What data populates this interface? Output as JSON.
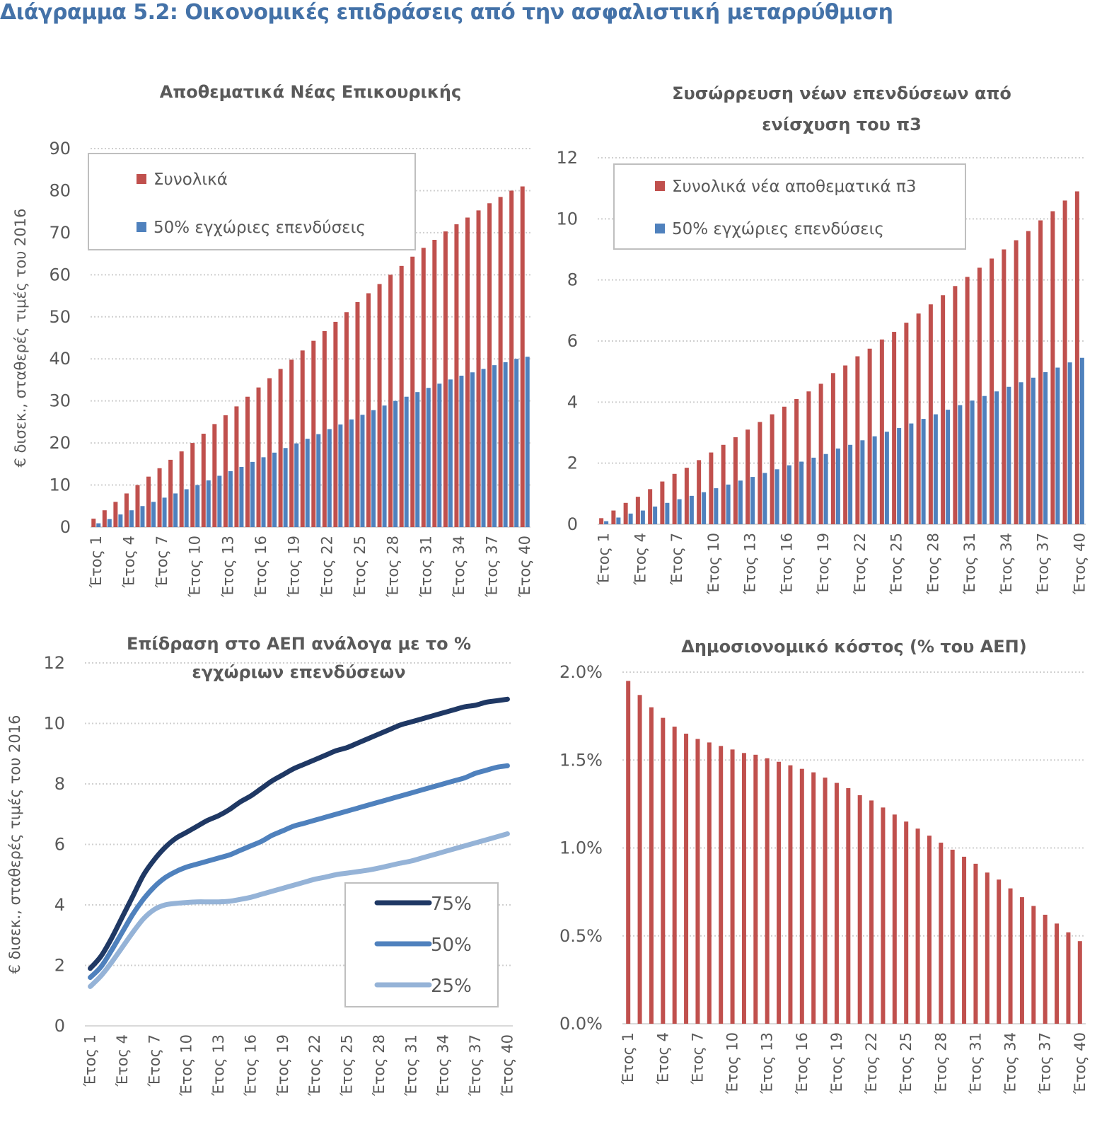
{
  "page": {
    "title": "Διάγραμμα 5.2: Οικονομικές επιδράσεις από την ασφαλιστική μεταρρύθμιση"
  },
  "chart_data": [
    {
      "id": "reserves",
      "type": "bar",
      "title": [
        "Αποθεματικά Νέας Επικουρικής"
      ],
      "xlabel": "",
      "ylabel": "€ δισεκ., σταθερές τιμές του 2016",
      "ylim": [
        0,
        90
      ],
      "yticks": [
        0,
        10,
        20,
        30,
        40,
        50,
        60,
        70,
        80,
        90
      ],
      "ytick_labels": [
        "0",
        "10",
        "20",
        "30",
        "40",
        "50",
        "60",
        "70",
        "80",
        "90"
      ],
      "grid": true,
      "legend": "top-left",
      "categories": [
        "Έτος 1",
        "Έτος 2",
        "Έτος 3",
        "Έτος 4",
        "Έτος 5",
        "Έτος 6",
        "Έτος 7",
        "Έτος 8",
        "Έτος 9",
        "Έτος 10",
        "Έτος 11",
        "Έτος 12",
        "Έτος 13",
        "Έτος 14",
        "Έτος 15",
        "Έτος 16",
        "Έτος 17",
        "Έτος 18",
        "Έτος 19",
        "Έτος 20",
        "Έτος 21",
        "Έτος 22",
        "Έτος 23",
        "Έτος 24",
        "Έτος 25",
        "Έτος 26",
        "Έτος 27",
        "Έτος 28",
        "Έτος 29",
        "Έτος 30",
        "Έτος 31",
        "Έτος 32",
        "Έτος 33",
        "Έτος 34",
        "Έτος 35",
        "Έτος 36",
        "Έτος 37",
        "Έτος 38",
        "Έτος 39",
        "Έτος 40"
      ],
      "tick_every": 3,
      "series": [
        {
          "name": "Συνολικά",
          "color": "#c0504d",
          "values": [
            2,
            4,
            6,
            8,
            10,
            12,
            14,
            16,
            18,
            20,
            22.2,
            24.5,
            26.6,
            28.7,
            31,
            33.2,
            35.4,
            37.6,
            39.8,
            42,
            44.3,
            46.6,
            48.8,
            51.1,
            53.5,
            55.6,
            57.8,
            60,
            62.1,
            64.3,
            66.4,
            68.3,
            70.3,
            72,
            73.6,
            75.3,
            77,
            78.5,
            80,
            81
          ]
        },
        {
          "name": "50% εγχώριες επενδύσεις",
          "color": "#4f81bd",
          "values": [
            0.9,
            1.9,
            3,
            4,
            5,
            6,
            7,
            8,
            9,
            10,
            11.1,
            12.2,
            13.3,
            14.3,
            15.5,
            16.6,
            17.7,
            18.8,
            19.9,
            21,
            22.1,
            23.3,
            24.4,
            25.6,
            26.7,
            27.8,
            28.9,
            30,
            31,
            32.1,
            33.1,
            34.1,
            35.1,
            36,
            36.8,
            37.6,
            38.5,
            39.2,
            40,
            40.5
          ]
        }
      ]
    },
    {
      "id": "pillar3",
      "type": "bar",
      "title": [
        "Συσώρρευση νέων επενδύσεων από",
        "ενίσχυση του π3"
      ],
      "xlabel": "",
      "ylabel": "",
      "ylim": [
        0,
        12
      ],
      "yticks": [
        0,
        2,
        4,
        6,
        8,
        10,
        12
      ],
      "ytick_labels": [
        "0",
        "2",
        "4",
        "6",
        "8",
        "10",
        "12"
      ],
      "grid": true,
      "legend": "top-left",
      "categories": [
        "Έτος 1",
        "Έτος 2",
        "Έτος 3",
        "Έτος 4",
        "Έτος 5",
        "Έτος 6",
        "Έτος 7",
        "Έτος 8",
        "Έτος 9",
        "Έτος 10",
        "Έτος 11",
        "Έτος 12",
        "Έτος 13",
        "Έτος 14",
        "Έτος 15",
        "Έτος 16",
        "Έτος 17",
        "Έτος 18",
        "Έτος 19",
        "Έτος 20",
        "Έτος 21",
        "Έτος 22",
        "Έτος 23",
        "Έτος 24",
        "Έτος 25",
        "Έτος 26",
        "Έτος 27",
        "Έτος 28",
        "Έτος 29",
        "Έτος 30",
        "Έτος 31",
        "Έτος 32",
        "Έτος 33",
        "Έτος 34",
        "Έτος 35",
        "Έτος 36",
        "Έτος 37",
        "Έτος 38",
        "Έτος 39",
        "Έτος 40"
      ],
      "tick_every": 3,
      "series": [
        {
          "name": "Συνολικά νέα αποθεματικά π3",
          "color": "#c0504d",
          "values": [
            0.2,
            0.45,
            0.7,
            0.9,
            1.15,
            1.4,
            1.65,
            1.85,
            2.1,
            2.35,
            2.6,
            2.85,
            3.1,
            3.35,
            3.6,
            3.85,
            4.1,
            4.35,
            4.6,
            4.95,
            5.2,
            5.5,
            5.75,
            6.05,
            6.3,
            6.6,
            6.9,
            7.2,
            7.5,
            7.8,
            8.1,
            8.4,
            8.7,
            9.0,
            9.3,
            9.6,
            9.95,
            10.25,
            10.6,
            10.9
          ]
        },
        {
          "name": "50% εγχώριες επενδύσεις",
          "color": "#4f81bd",
          "values": [
            0.1,
            0.22,
            0.35,
            0.45,
            0.58,
            0.7,
            0.82,
            0.93,
            1.05,
            1.18,
            1.3,
            1.43,
            1.55,
            1.68,
            1.8,
            1.93,
            2.05,
            2.18,
            2.3,
            2.48,
            2.6,
            2.75,
            2.88,
            3.03,
            3.15,
            3.3,
            3.45,
            3.6,
            3.75,
            3.9,
            4.05,
            4.2,
            4.35,
            4.5,
            4.65,
            4.8,
            4.98,
            5.13,
            5.3,
            5.45
          ]
        }
      ]
    },
    {
      "id": "gdp",
      "type": "line",
      "title": [
        "Επίδραση στο ΑΕΠ ανάλογα με το %",
        "εγχώριων επενδύσεων"
      ],
      "xlabel": "",
      "ylabel": "€ δισεκ., σταθερές τιμές του 2016",
      "ylim": [
        0,
        12
      ],
      "yticks": [
        0,
        2,
        4,
        6,
        8,
        10,
        12
      ],
      "ytick_labels": [
        "0",
        "2",
        "4",
        "6",
        "8",
        "10",
        "12"
      ],
      "grid": true,
      "legend": "bottom-right",
      "categories": [
        "Έτος 1",
        "Έτος 2",
        "Έτος 3",
        "Έτος 4",
        "Έτος 5",
        "Έτος 6",
        "Έτος 7",
        "Έτος 8",
        "Έτος 9",
        "Έτος 10",
        "Έτος 11",
        "Έτος 12",
        "Έτος 13",
        "Έτος 14",
        "Έτος 15",
        "Έτος 16",
        "Έτος 17",
        "Έτος 18",
        "Έτος 19",
        "Έτος 20",
        "Έτος 21",
        "Έτος 22",
        "Έτος 23",
        "Έτος 24",
        "Έτος 25",
        "Έτος 26",
        "Έτος 27",
        "Έτος 28",
        "Έτος 29",
        "Έτος 30",
        "Έτος 31",
        "Έτος 32",
        "Έτος 33",
        "Έτος 34",
        "Έτος 35",
        "Έτος 36",
        "Έτος 37",
        "Έτος 38",
        "Έτος 39",
        "Έτος 40"
      ],
      "tick_every": 3,
      "series": [
        {
          "name": "75%",
          "color": "#1f3864",
          "values": [
            1.9,
            2.3,
            2.9,
            3.6,
            4.3,
            5.0,
            5.5,
            5.9,
            6.2,
            6.4,
            6.6,
            6.8,
            6.95,
            7.15,
            7.4,
            7.6,
            7.85,
            8.1,
            8.3,
            8.5,
            8.65,
            8.8,
            8.95,
            9.1,
            9.2,
            9.35,
            9.5,
            9.65,
            9.8,
            9.95,
            10.05,
            10.15,
            10.25,
            10.35,
            10.45,
            10.55,
            10.6,
            10.7,
            10.75,
            10.8
          ]
        },
        {
          "name": "50%",
          "color": "#4f81bd",
          "values": [
            1.6,
            1.95,
            2.5,
            3.1,
            3.7,
            4.2,
            4.6,
            4.9,
            5.1,
            5.25,
            5.35,
            5.45,
            5.55,
            5.65,
            5.8,
            5.95,
            6.1,
            6.3,
            6.45,
            6.6,
            6.7,
            6.8,
            6.9,
            7.0,
            7.1,
            7.2,
            7.3,
            7.4,
            7.5,
            7.6,
            7.7,
            7.8,
            7.9,
            8.0,
            8.1,
            8.2,
            8.35,
            8.45,
            8.55,
            8.6
          ]
        },
        {
          "name": "25%",
          "color": "#95b3d7",
          "values": [
            1.3,
            1.65,
            2.1,
            2.6,
            3.1,
            3.55,
            3.85,
            4.0,
            4.05,
            4.08,
            4.1,
            4.1,
            4.1,
            4.12,
            4.18,
            4.25,
            4.35,
            4.45,
            4.55,
            4.65,
            4.75,
            4.85,
            4.92,
            5.0,
            5.05,
            5.1,
            5.15,
            5.22,
            5.3,
            5.38,
            5.45,
            5.55,
            5.65,
            5.75,
            5.85,
            5.95,
            6.05,
            6.15,
            6.25,
            6.35
          ]
        }
      ]
    },
    {
      "id": "fiscal",
      "type": "bar",
      "title": [
        "Δημοσιονομικό κόστος (% του ΑΕΠ)"
      ],
      "xlabel": "",
      "ylabel": "",
      "ylim": [
        0,
        0.02
      ],
      "yticks": [
        0,
        0.005,
        0.01,
        0.015,
        0.02
      ],
      "ytick_labels": [
        "0.0%",
        "0.5%",
        "1.0%",
        "1.5%",
        "2.0%"
      ],
      "grid": true,
      "legend": "none",
      "categories": [
        "Έτος 1",
        "Έτος 2",
        "Έτος 3",
        "Έτος 4",
        "Έτος 5",
        "Έτος 6",
        "Έτος 7",
        "Έτος 8",
        "Έτος 9",
        "Έτος 10",
        "Έτος 11",
        "Έτος 12",
        "Έτος 13",
        "Έτος 14",
        "Έτος 15",
        "Έτος 16",
        "Έτος 17",
        "Έτος 18",
        "Έτος 19",
        "Έτος 20",
        "Έτος 21",
        "Έτος 22",
        "Έτος 23",
        "Έτος 24",
        "Έτος 25",
        "Έτος 26",
        "Έτος 27",
        "Έτος 28",
        "Έτος 29",
        "Έτος 30",
        "Έτος 31",
        "Έτος 32",
        "Έτος 33",
        "Έτος 34",
        "Έτος 35",
        "Έτος 36",
        "Έτος 37",
        "Έτος 38",
        "Έτος 39",
        "Έτος 40"
      ],
      "tick_every": 3,
      "series": [
        {
          "name": "Δημοσιονομικό κόστος",
          "color": "#c0504d",
          "values": [
            0.0195,
            0.0187,
            0.018,
            0.0174,
            0.0169,
            0.0165,
            0.0162,
            0.016,
            0.0158,
            0.0156,
            0.0154,
            0.0153,
            0.0151,
            0.0149,
            0.0147,
            0.0145,
            0.0143,
            0.014,
            0.0137,
            0.0134,
            0.013,
            0.0127,
            0.0123,
            0.0119,
            0.0115,
            0.0111,
            0.0107,
            0.0103,
            0.0099,
            0.0095,
            0.0091,
            0.0086,
            0.0082,
            0.0077,
            0.0072,
            0.0067,
            0.0062,
            0.0057,
            0.0052,
            0.0047
          ]
        }
      ]
    }
  ]
}
